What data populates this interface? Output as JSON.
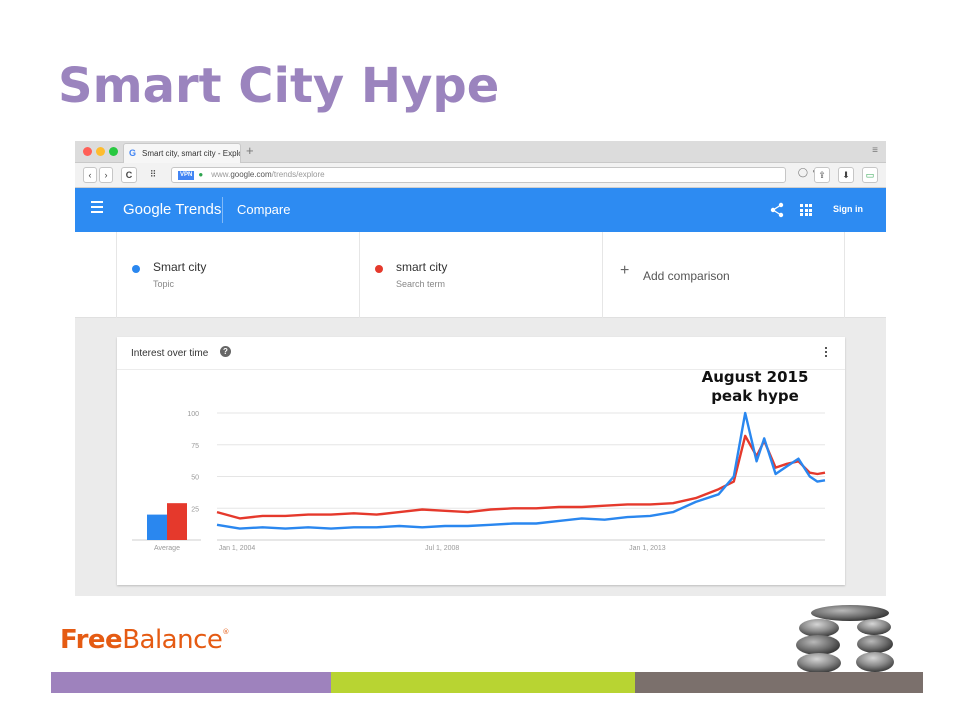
{
  "slide": {
    "title": "Smart City Hype"
  },
  "browser": {
    "tab_title": "Smart city, smart city - Explo",
    "tab_favicon": "G",
    "new_tab": "+",
    "menu_glyph": "≡",
    "back": "‹",
    "forward": "›",
    "reload": "C",
    "grid_glyph": "⠿",
    "vpn_badge": "VPN",
    "url_prefix": "www.",
    "url_host": "google.com",
    "url_path": "/trends/explore",
    "share_glyph": "⇪",
    "download_glyph": "⬇",
    "battery_glyph": "▭"
  },
  "trends": {
    "logo": "Google Trends",
    "section": "Compare",
    "sign_in": "Sign in",
    "colors": {
      "header": "#2d8bf2",
      "series1": "#2a87ef",
      "series2": "#e5392c"
    },
    "terms": [
      {
        "name": "Smart city",
        "type": "Topic",
        "color": "#2a87ef"
      },
      {
        "name": "smart city",
        "type": "Search term",
        "color": "#e5392c"
      }
    ],
    "add_comparison": "Add comparison"
  },
  "card": {
    "title": "Interest over time",
    "help": "?"
  },
  "annotation": {
    "line1": "August 2015",
    "line2": "peak hype"
  },
  "branding": {
    "logo_free": "Free",
    "logo_balance": "Balance",
    "logo_mark": "®"
  },
  "chart_data": {
    "type": "line",
    "title": "Interest over time",
    "x_tick_labels": [
      "Jan 1, 2004",
      "Jul 1, 2008",
      "Jan 1, 2013"
    ],
    "y_ticks": [
      25,
      50,
      75,
      100
    ],
    "ylim": [
      0,
      100
    ],
    "xlim": [
      "2004-01",
      "2017-05"
    ],
    "grid": true,
    "average": {
      "label": "Average",
      "values": [
        20,
        29
      ]
    },
    "series": [
      {
        "name": "Smart city",
        "points": [
          [
            "2004-01",
            12
          ],
          [
            "2004-07",
            9
          ],
          [
            "2005-01",
            10
          ],
          [
            "2005-07",
            9
          ],
          [
            "2006-01",
            10
          ],
          [
            "2006-07",
            9
          ],
          [
            "2007-01",
            10
          ],
          [
            "2007-07",
            10
          ],
          [
            "2008-01",
            11
          ],
          [
            "2008-07",
            10
          ],
          [
            "2009-01",
            11
          ],
          [
            "2009-07",
            11
          ],
          [
            "2010-01",
            12
          ],
          [
            "2010-07",
            13
          ],
          [
            "2011-01",
            13
          ],
          [
            "2011-07",
            15
          ],
          [
            "2012-01",
            17
          ],
          [
            "2012-07",
            16
          ],
          [
            "2013-01",
            18
          ],
          [
            "2013-07",
            19
          ],
          [
            "2014-01",
            22
          ],
          [
            "2014-07",
            30
          ],
          [
            "2015-01",
            36
          ],
          [
            "2015-05",
            50
          ],
          [
            "2015-08",
            100
          ],
          [
            "2015-11",
            62
          ],
          [
            "2016-01",
            80
          ],
          [
            "2016-04",
            52
          ],
          [
            "2016-07",
            58
          ],
          [
            "2016-10",
            64
          ],
          [
            "2017-01",
            50
          ],
          [
            "2017-03",
            46
          ],
          [
            "2017-05",
            47
          ]
        ]
      },
      {
        "name": "smart city",
        "points": [
          [
            "2004-01",
            22
          ],
          [
            "2004-07",
            17
          ],
          [
            "2005-01",
            19
          ],
          [
            "2005-07",
            19
          ],
          [
            "2006-01",
            20
          ],
          [
            "2006-07",
            20
          ],
          [
            "2007-01",
            21
          ],
          [
            "2007-07",
            20
          ],
          [
            "2008-01",
            22
          ],
          [
            "2008-07",
            24
          ],
          [
            "2009-01",
            23
          ],
          [
            "2009-07",
            22
          ],
          [
            "2010-01",
            24
          ],
          [
            "2010-07",
            25
          ],
          [
            "2011-01",
            25
          ],
          [
            "2011-07",
            26
          ],
          [
            "2012-01",
            26
          ],
          [
            "2012-07",
            27
          ],
          [
            "2013-01",
            28
          ],
          [
            "2013-07",
            28
          ],
          [
            "2014-01",
            29
          ],
          [
            "2014-07",
            33
          ],
          [
            "2015-01",
            40
          ],
          [
            "2015-05",
            46
          ],
          [
            "2015-08",
            82
          ],
          [
            "2015-11",
            66
          ],
          [
            "2016-01",
            78
          ],
          [
            "2016-04",
            57
          ],
          [
            "2016-07",
            60
          ],
          [
            "2016-10",
            62
          ],
          [
            "2017-01",
            53
          ],
          [
            "2017-03",
            52
          ],
          [
            "2017-05",
            53
          ]
        ]
      }
    ]
  }
}
